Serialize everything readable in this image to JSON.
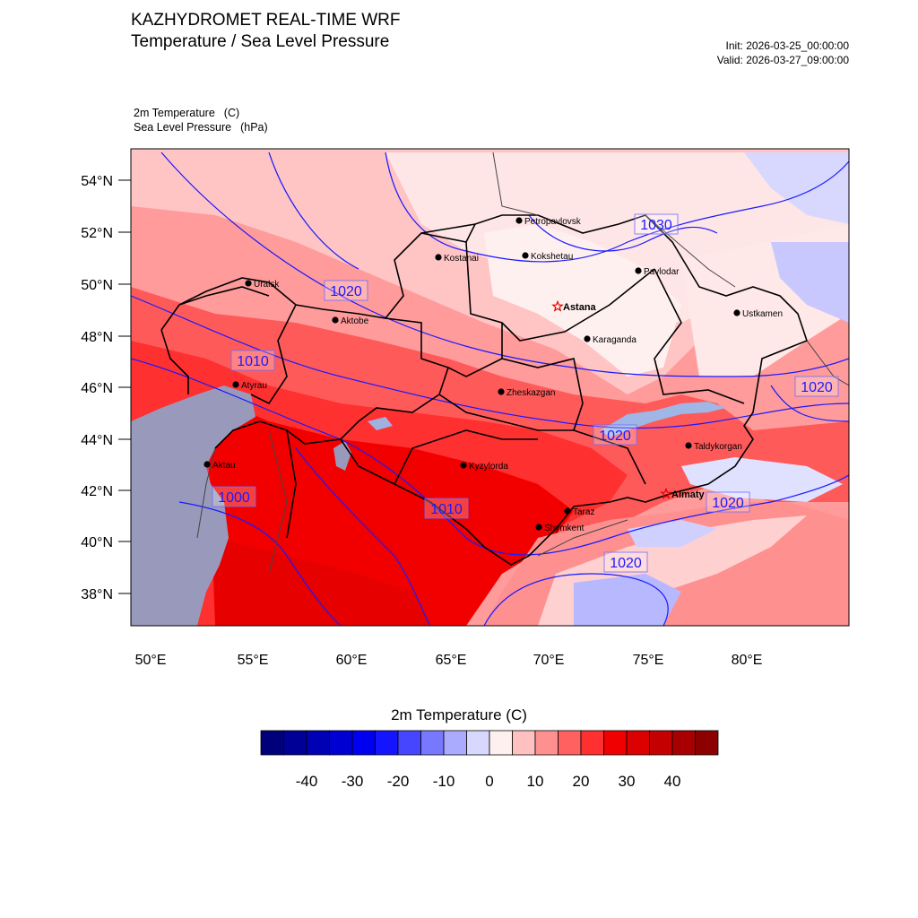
{
  "header": {
    "title_line1": "KAZHYDROMET REAL-TIME WRF",
    "title_line2": "Temperature / Sea Level Pressure",
    "init": "Init: 2026-03-25_00:00:00",
    "valid": "Valid: 2026-03-27_09:00:00"
  },
  "variables": {
    "temp_label": "2m Temperature",
    "temp_unit": "(C)",
    "slp_label": "Sea Level Pressure",
    "slp_unit": "(hPa)"
  },
  "axes": {
    "lat_labels": [
      "54°N",
      "52°N",
      "50°N",
      "48°N",
      "46°N",
      "44°N",
      "42°N",
      "40°N",
      "38°N"
    ],
    "lon_labels": [
      "50°E",
      "55°E",
      "60°E",
      "65°E",
      "70°E",
      "75°E",
      "80°E"
    ]
  },
  "cities": [
    {
      "name": "Petropavlovsk",
      "capital": false
    },
    {
      "name": "Kostanai",
      "capital": false
    },
    {
      "name": "Kokshetau",
      "capital": false
    },
    {
      "name": "Pavlodar",
      "capital": false
    },
    {
      "name": "Uralsk",
      "capital": false
    },
    {
      "name": "Astana",
      "capital": true
    },
    {
      "name": "Aktobe",
      "capital": false
    },
    {
      "name": "Ustkamen",
      "capital": false
    },
    {
      "name": "Karaganda",
      "capital": false
    },
    {
      "name": "Atyrau",
      "capital": false
    },
    {
      "name": "Zheskazgan",
      "capital": false
    },
    {
      "name": "Taldykorgan",
      "capital": false
    },
    {
      "name": "Aktau",
      "capital": false
    },
    {
      "name": "Kyzylorda",
      "capital": false
    },
    {
      "name": "Almaty",
      "capital": true
    },
    {
      "name": "Taraz",
      "capital": false
    },
    {
      "name": "Shymkent",
      "capital": false
    }
  ],
  "isobar_labels": [
    "1030",
    "1020",
    "1010",
    "1020",
    "1020",
    "1000",
    "1010",
    "1020",
    "1020"
  ],
  "colorbar": {
    "title": "2m Temperature  (C)",
    "ticks": [
      "-40",
      "-30",
      "-20",
      "-10",
      "0",
      "10",
      "20",
      "30",
      "40"
    ],
    "colors": [
      "#00007a",
      "#000096",
      "#0000b4",
      "#0000d2",
      "#0000f0",
      "#1414ff",
      "#4646ff",
      "#7878ff",
      "#aaaaff",
      "#d8d8ff",
      "#fff0f0",
      "#ffc0c0",
      "#ff9090",
      "#ff6060",
      "#ff3030",
      "#f00000",
      "#dc0000",
      "#c40000",
      "#a80000",
      "#8c0000"
    ]
  },
  "colors": {
    "isobar": "#1a1aff",
    "border": "#000000",
    "caspian": "#9999bb"
  }
}
